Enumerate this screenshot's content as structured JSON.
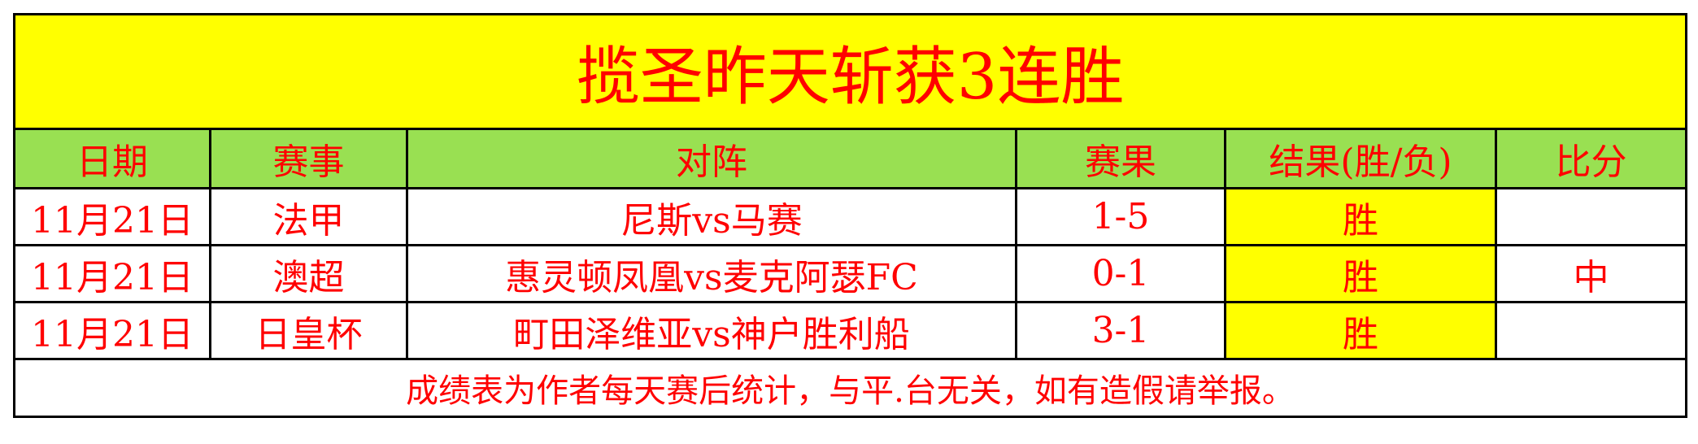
{
  "title": "揽圣昨天斩获3连胜",
  "headers": [
    "日期",
    "赛事",
    "对阵",
    "赛果",
    "结果(胜/负)",
    "比分"
  ],
  "rows": [
    {
      "date": "11月21日",
      "league": "法甲",
      "match": "尼斯vs马赛",
      "score": "1-5",
      "result": "胜",
      "bifen": ""
    },
    {
      "date": "11月21日",
      "league": "澳超",
      "match": "惠灵顿凤凰vs麦克阿瑟FC",
      "score": "0-1",
      "result": "胜",
      "bifen": "中"
    },
    {
      "date": "11月21日",
      "league": "日皇杯",
      "match": "町田泽维亚vs神户胜利船",
      "score": "3-1",
      "result": "胜",
      "bifen": ""
    }
  ],
  "footer": "成绩表为作者每天赛后统计，与平.台无关，如有造假请举报。",
  "colors": {
    "title_bg": "#ffff00",
    "header_bg": "#99e052",
    "result_bg": "#ffff00",
    "text": "#ff0000"
  }
}
